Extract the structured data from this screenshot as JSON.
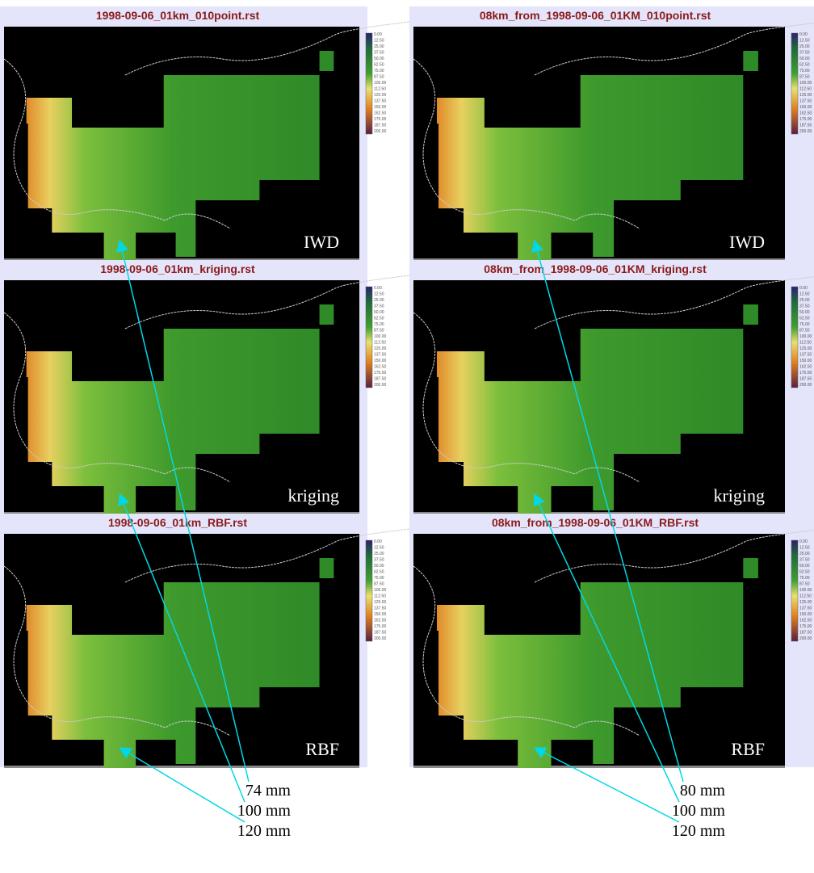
{
  "panels": [
    {
      "title": "1998-09-06_01km_010point.rst",
      "method": "IWD"
    },
    {
      "title": "08km_from_1998-09-06_01KM_010point.rst",
      "method": "IWD"
    },
    {
      "title": "1998-09-06_01km_kriging.rst",
      "method": "kriging"
    },
    {
      "title": "08km_from_1998-09-06_01KM_kriging.rst",
      "method": "kriging"
    },
    {
      "title": "1998-09-06_01km_RBF.rst",
      "method": "RBF"
    },
    {
      "title": "08km_from_1998-09-06_01KM_RBF.rst",
      "method": "RBF"
    }
  ],
  "legend_labels": [
    "0.00",
    "12.50",
    "25.00",
    "37.50",
    "50.00",
    "62.50",
    "75.00",
    "87.50",
    "100.00",
    "112.50",
    "125.00",
    "137.50",
    "150.00",
    "162.50",
    "175.00",
    "187.50",
    "200.00"
  ],
  "annotations": {
    "left": [
      "74 mm",
      "100 mm",
      "120 mm"
    ],
    "right": [
      "80 mm",
      "100 mm",
      "120 mm"
    ]
  }
}
